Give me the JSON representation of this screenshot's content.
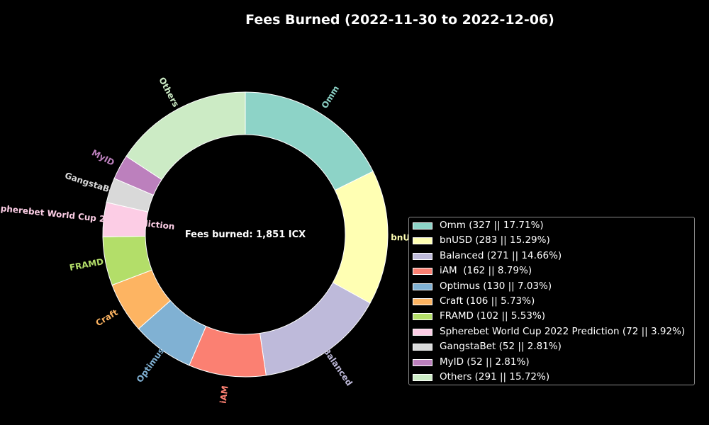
{
  "title": "Fees Burned (2022-11-30 to 2022-12-06)",
  "chart_data": {
    "type": "pie",
    "donut": true,
    "title": "Fees Burned (2022-11-30 to 2022-12-06)",
    "center_text": "Fees burned: 1,851 ICX",
    "legend_position": "right",
    "slices": [
      {
        "label": "Omm",
        "value": 327,
        "percent": 17.71,
        "color": "#8dd3c7",
        "legend": "Omm (327 || 17.71%)"
      },
      {
        "label": "bnUSD",
        "value": 283,
        "percent": 15.29,
        "color": "#ffffb3",
        "legend": "bnUSD (283 || 15.29%)"
      },
      {
        "label": "Balanced",
        "value": 271,
        "percent": 14.66,
        "color": "#bebada",
        "legend": "Balanced (271 || 14.66%)"
      },
      {
        "label": "iAM",
        "value": 162,
        "percent": 8.79,
        "color": "#fb8072",
        "legend": "iAM  (162 || 8.79%)"
      },
      {
        "label": "Optimus",
        "value": 130,
        "percent": 7.03,
        "color": "#80b1d3",
        "legend": "Optimus (130 || 7.03%)"
      },
      {
        "label": "Craft",
        "value": 106,
        "percent": 5.73,
        "color": "#fdb462",
        "legend": "Craft (106 || 5.73%)"
      },
      {
        "label": "FRAMD",
        "value": 102,
        "percent": 5.53,
        "color": "#b3de69",
        "legend": "FRAMD (102 || 5.53%)"
      },
      {
        "label": "Spherebet World Cup 2022 Prediction",
        "value": 72,
        "percent": 3.92,
        "color": "#fccde5",
        "legend": "Spherebet World Cup 2022 Prediction (72 || 3.92%)"
      },
      {
        "label": "GangstaBet",
        "value": 52,
        "percent": 2.81,
        "color": "#d9d9d9",
        "legend": "GangstaBet (52 || 2.81%)"
      },
      {
        "label": "MyID",
        "value": 52,
        "percent": 2.81,
        "color": "#bc80bd",
        "legend": "MyID (52 || 2.81%)"
      },
      {
        "label": "Others",
        "value": 291,
        "percent": 15.72,
        "color": "#ccebc5",
        "legend": "Others (291 || 15.72%)"
      }
    ]
  }
}
